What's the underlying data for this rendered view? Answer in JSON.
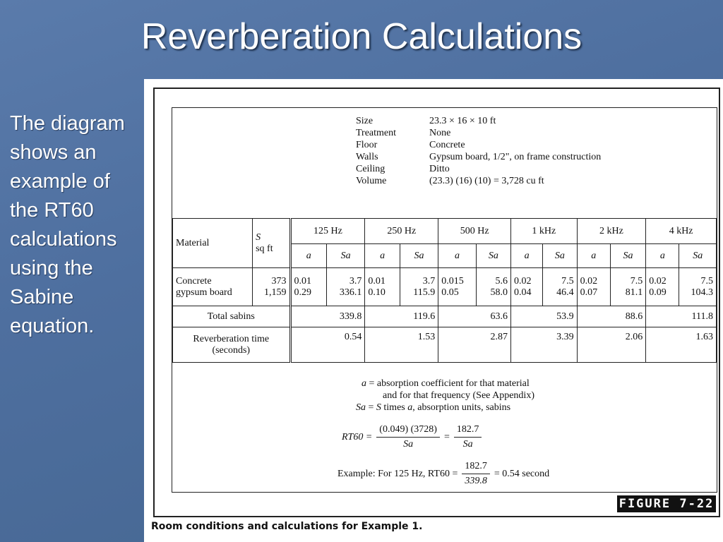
{
  "slide": {
    "title": "Reverberation Calculations",
    "description": "The diagram shows an example of the RT60 calculations using the Sabine equation."
  },
  "figure": {
    "label": "FIGURE 7-22",
    "caption": "Room conditions and calculations for Example 1.",
    "conditions": [
      {
        "key": "Size",
        "value": "23.3 × 16 × 10 ft"
      },
      {
        "key": "Treatment",
        "value": "None"
      },
      {
        "key": "Floor",
        "value": "Concrete"
      },
      {
        "key": "Walls",
        "value": "Gypsum board, 1/2\", on frame construction"
      },
      {
        "key": "Ceiling",
        "value": "Ditto"
      },
      {
        "key": "Volume",
        "value": "(23.3)  (16)  (10) = 3,728 cu ft"
      }
    ],
    "table": {
      "material_header": "Material",
      "s_header": "S",
      "s_unit": "sq ft",
      "a_label": "a",
      "sa_label": "Sa",
      "frequencies": [
        "125 Hz",
        "250 Hz",
        "500 Hz",
        "1 kHz",
        "2 kHz",
        "4 kHz"
      ],
      "materials": [
        "Concrete",
        "gypsum board"
      ],
      "areas": [
        "373",
        "1,159"
      ],
      "cells": [
        {
          "a": [
            "0.01",
            "0.29"
          ],
          "sa": [
            "3.7",
            "336.1"
          ]
        },
        {
          "a": [
            "0.01",
            "0.10"
          ],
          "sa": [
            "3.7",
            "115.9"
          ]
        },
        {
          "a": [
            "0.015",
            "0.05"
          ],
          "sa": [
            "5.6",
            "58.0"
          ]
        },
        {
          "a": [
            "0.02",
            "0.04"
          ],
          "sa": [
            "7.5",
            "46.4"
          ]
        },
        {
          "a": [
            "0.02",
            "0.07"
          ],
          "sa": [
            "7.5",
            "81.1"
          ]
        },
        {
          "a": [
            "0.02",
            "0.09"
          ],
          "sa": [
            "7.5",
            "104.3"
          ]
        }
      ],
      "total_label": "Total sabins",
      "totals": [
        "339.8",
        "119.6",
        "63.6",
        "53.9",
        "88.6",
        "111.8"
      ],
      "rt_label_1": "Reverberation time",
      "rt_label_2": "(seconds)",
      "rt_values": [
        "0.54",
        "1.53",
        "2.87",
        "3.39",
        "2.06",
        "1.63"
      ]
    },
    "notes": {
      "a_def_sym": "a",
      "a_def_1": " = absorption coefficient for that material",
      "a_def_2": "and for that frequency (See Appendix)",
      "sa_def_sym": "Sa",
      "sa_def_mid": " = ",
      "sa_def_s": "S",
      "sa_def_rest": " times ",
      "sa_def_a": "a",
      "sa_def_end": ", absorption units, sabins",
      "rt60": "RT60 =",
      "f1_num": "(0.049) (3728)",
      "f1_den": "Sa",
      "eq": "=",
      "f2_num": "182.7",
      "f2_den": "Sa",
      "ex_pre": "Example: For 125 Hz, RT60 =",
      "ex_num": "182.7",
      "ex_den": "339.8",
      "ex_post": "= 0.54 second"
    }
  }
}
